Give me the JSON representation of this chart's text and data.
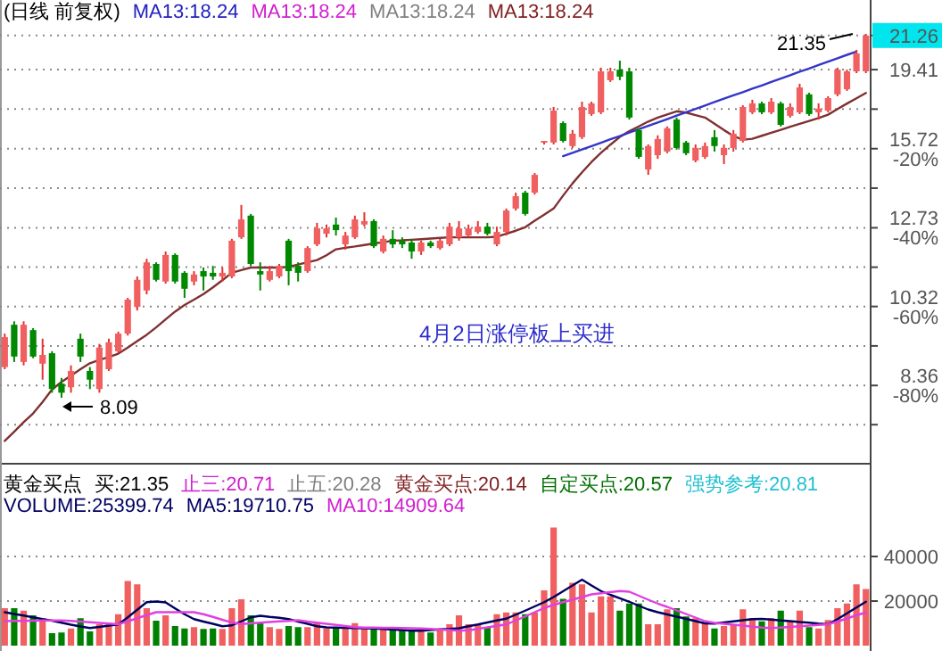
{
  "chart_data": [
    {
      "type": "candlestick",
      "log": true,
      "ylim": [
        6.85,
        23.37
      ],
      "tick_labels": "y",
      "grid": "y",
      "yticks": [
        21.26,
        19.41,
        {
          "value": 17.47,
          "label": null
        },
        {
          "value": 15.72,
          "label": "15.72\n-20%"
        },
        {
          "value": 14.15,
          "label": null
        },
        {
          "value": 12.73,
          "label": "12.73\n-40%"
        },
        {
          "value": 11.46,
          "label": null
        },
        {
          "value": 10.32,
          "label": "10.32\n-60%"
        },
        {
          "value": 9.29,
          "label": null
        },
        {
          "value": 8.36,
          "label": "8.36\n-80%"
        },
        {
          "value": 7.53,
          "label": null
        }
      ],
      "categories": [
        null,
        null,
        null,
        null,
        null,
        null,
        null,
        null,
        null,
        null,
        null,
        null,
        null,
        null,
        null,
        null,
        null,
        null,
        null,
        null,
        null,
        null,
        null,
        null,
        null,
        null,
        null,
        null,
        null,
        null,
        null,
        null,
        null,
        null,
        null,
        null,
        null,
        null,
        null,
        null,
        null,
        null,
        null,
        null,
        null,
        null,
        null,
        null,
        null,
        null,
        null,
        null,
        null,
        null,
        null,
        null,
        null,
        null,
        null,
        null,
        null,
        null,
        null,
        null,
        null,
        null,
        null,
        null,
        null,
        null,
        null,
        null,
        null,
        null,
        null,
        null,
        null,
        null,
        null,
        null,
        null,
        null,
        null,
        null,
        null,
        null,
        null,
        null,
        null,
        null,
        null,
        null
      ],
      "ohlc": [
        [
          8.78,
          9.6,
          8.73,
          9.51
        ],
        [
          9.83,
          9.92,
          8.9,
          9.03
        ],
        [
          8.9,
          9.92,
          8.82,
          9.83
        ],
        [
          9.69,
          9.74,
          8.99,
          9.03
        ],
        [
          8.86,
          9.47,
          8.49,
          9.07
        ],
        [
          9.11,
          9.16,
          8.2,
          8.28
        ],
        [
          8.4,
          8.53,
          8.09,
          8.2
        ],
        [
          8.32,
          8.82,
          8.2,
          8.69
        ],
        [
          9.47,
          9.6,
          8.9,
          9.03
        ],
        [
          8.69,
          8.78,
          8.28,
          8.49
        ],
        [
          8.28,
          9.34,
          8.2,
          9.25
        ],
        [
          8.73,
          9.47,
          8.69,
          9.38
        ],
        [
          9.16,
          9.65,
          9.11,
          9.6
        ],
        [
          9.6,
          10.56,
          9.55,
          10.51
        ],
        [
          10.31,
          11.18,
          10.21,
          11.08
        ],
        [
          10.77,
          11.72,
          10.66,
          11.61
        ],
        [
          11.56,
          11.61,
          11.03,
          11.08
        ],
        [
          11.03,
          11.95,
          10.97,
          11.84
        ],
        [
          11.84,
          11.89,
          10.97,
          11.03
        ],
        [
          11.29,
          11.34,
          10.56,
          10.82
        ],
        [
          11.03,
          11.34,
          10.92,
          11.24
        ],
        [
          11.34,
          11.45,
          10.77,
          11.18
        ],
        [
          11.29,
          11.5,
          11.08,
          11.18
        ],
        [
          11.18,
          11.45,
          11.03,
          11.29
        ],
        [
          11.18,
          12.36,
          11.13,
          12.3
        ],
        [
          12.41,
          13.53,
          12.36,
          13.02
        ],
        [
          13.15,
          13.21,
          11.5,
          11.56
        ],
        [
          11.34,
          11.61,
          10.77,
          11.24
        ],
        [
          11.08,
          11.5,
          11.03,
          11.34
        ],
        [
          11.18,
          11.56,
          11.13,
          11.5
        ],
        [
          12.3,
          12.36,
          10.92,
          11.34
        ],
        [
          11.5,
          11.61,
          11.03,
          11.29
        ],
        [
          11.34,
          12.12,
          11.29,
          12.06
        ],
        [
          12.18,
          12.9,
          12.12,
          12.71
        ],
        [
          12.53,
          12.84,
          12.41,
          12.71
        ],
        [
          12.84,
          13.08,
          12.47,
          12.65
        ],
        [
          12.18,
          12.59,
          12.01,
          12.47
        ],
        [
          12.41,
          13.15,
          12.36,
          13.02
        ],
        [
          12.84,
          13.27,
          12.77,
          12.96
        ],
        [
          12.96,
          13.02,
          12.06,
          12.12
        ],
        [
          11.95,
          12.47,
          11.89,
          12.36
        ],
        [
          12.36,
          12.65,
          12.06,
          12.18
        ],
        [
          12.3,
          12.41,
          12.06,
          12.18
        ],
        [
          12.24,
          12.36,
          11.72,
          11.95
        ],
        [
          11.95,
          12.3,
          11.84,
          12.24
        ],
        [
          12.24,
          12.3,
          12.06,
          12.12
        ],
        [
          12.06,
          12.36,
          12.01,
          12.3
        ],
        [
          12.18,
          12.9,
          12.12,
          12.77
        ],
        [
          12.41,
          12.96,
          12.3,
          12.71
        ],
        [
          12.47,
          12.84,
          12.41,
          12.71
        ],
        [
          12.59,
          12.96,
          12.53,
          12.77
        ],
        [
          12.77,
          12.9,
          12.47,
          12.53
        ],
        [
          12.18,
          12.77,
          12.12,
          12.59
        ],
        [
          12.59,
          13.4,
          12.47,
          13.33
        ],
        [
          13.4,
          13.98,
          13.33,
          13.85
        ],
        [
          13.98,
          14.05,
          13.15,
          13.21
        ],
        [
          13.98,
          14.73,
          13.91,
          14.66
        ],
        [
          16.05,
          16.05,
          15.9,
          16.05
        ],
        [
          15.98,
          17.57,
          15.9,
          17.4
        ],
        [
          16.83,
          16.91,
          15.98,
          16.05
        ],
        [
          15.83,
          16.52,
          15.75,
          16.36
        ],
        [
          16.21,
          17.82,
          16.13,
          17.57
        ],
        [
          17.24,
          17.82,
          17.16,
          17.74
        ],
        [
          17.32,
          19.51,
          17.24,
          19.32
        ],
        [
          18.87,
          19.51,
          18.78,
          19.32
        ],
        [
          19.41,
          19.88,
          18.87,
          19.05
        ],
        [
          19.32,
          19.51,
          16.99,
          17.08
        ],
        [
          16.52,
          16.6,
          15.3,
          15.38
        ],
        [
          14.87,
          15.9,
          14.66,
          15.83
        ],
        [
          15.45,
          16.29,
          15.3,
          16.13
        ],
        [
          15.6,
          16.68,
          15.53,
          16.6
        ],
        [
          16.99,
          17.08,
          15.68,
          15.75
        ],
        [
          15.98,
          16.05,
          15.45,
          15.53
        ],
        [
          15.23,
          15.9,
          15.16,
          15.75
        ],
        [
          15.38,
          15.98,
          15.3,
          15.83
        ],
        [
          16.21,
          16.52,
          15.6,
          15.83
        ],
        [
          15.45,
          15.9,
          15.09,
          15.75
        ],
        [
          15.75,
          16.52,
          15.6,
          16.36
        ],
        [
          16.05,
          17.65,
          15.98,
          17.57
        ],
        [
          17.32,
          17.91,
          17.24,
          17.74
        ],
        [
          17.74,
          17.82,
          17.24,
          17.32
        ],
        [
          17.32,
          17.99,
          17.24,
          17.82
        ],
        [
          17.74,
          17.82,
          16.68,
          16.75
        ],
        [
          17.16,
          17.74,
          17.08,
          17.57
        ],
        [
          17.32,
          18.69,
          17.24,
          18.51
        ],
        [
          18.17,
          18.25,
          17.16,
          17.24
        ],
        [
          17.32,
          17.74,
          16.99,
          17.49
        ],
        [
          17.4,
          18.08,
          17.32,
          17.99
        ],
        [
          18.17,
          19.51,
          18.08,
          19.41
        ],
        [
          18.42,
          19.41,
          18.34,
          19.32
        ],
        [
          19.32,
          20.46,
          19.23,
          20.27
        ],
        [
          19.32,
          21.35,
          19.23,
          21.26
        ]
      ],
      "series": [
        {
          "type": "line",
          "color": "#803030",
          "values": [
            7.21,
            7.39,
            7.58,
            7.76,
            8.0,
            8.27,
            8.44,
            8.58,
            8.73,
            8.87,
            8.95,
            9.02,
            9.1,
            9.25,
            9.41,
            9.57,
            9.76,
            9.97,
            10.18,
            10.36,
            10.51,
            10.67,
            10.86,
            11.07,
            11.29,
            11.37,
            11.45,
            11.45,
            11.45,
            11.45,
            11.47,
            11.54,
            11.61,
            11.68,
            11.83,
            12.02,
            12.07,
            12.11,
            12.16,
            12.21,
            12.25,
            12.3,
            12.31,
            12.33,
            12.35,
            12.37,
            12.39,
            12.41,
            12.41,
            12.41,
            12.41,
            12.41,
            12.43,
            12.53,
            12.63,
            12.75,
            12.97,
            13.18,
            13.4,
            13.87,
            14.33,
            14.76,
            15.17,
            15.55,
            15.89,
            16.22,
            16.47,
            16.68,
            16.9,
            17.08,
            17.22,
            17.37,
            17.31,
            17.19,
            17.08,
            16.8,
            16.52,
            16.26,
            16.1,
            16.14,
            16.27,
            16.4,
            16.53,
            16.67,
            16.8,
            16.93,
            17.06,
            17.21,
            17.47,
            17.73,
            17.98,
            18.24
          ]
        },
        {
          "type": "line",
          "color": "#3535c8",
          "values": [
            null,
            null,
            null,
            null,
            null,
            null,
            null,
            null,
            null,
            null,
            null,
            null,
            null,
            null,
            null,
            null,
            null,
            null,
            null,
            null,
            null,
            null,
            null,
            null,
            null,
            null,
            null,
            null,
            null,
            null,
            null,
            null,
            null,
            null,
            null,
            null,
            null,
            null,
            null,
            null,
            null,
            null,
            null,
            null,
            null,
            null,
            null,
            null,
            null,
            null,
            null,
            null,
            null,
            null,
            null,
            null,
            null,
            null,
            null,
            15.41,
            15.55,
            15.69,
            15.83,
            15.97,
            16.12,
            16.26,
            16.41,
            16.56,
            16.71,
            16.86,
            17.01,
            17.17,
            17.32,
            17.48,
            17.64,
            17.8,
            17.96,
            18.12,
            18.28,
            18.45,
            18.61,
            18.78,
            18.95,
            19.12,
            19.3,
            19.47,
            19.65,
            19.83,
            20.01,
            20.19,
            20.37,
            null
          ]
        }
      ],
      "annotations": [
        "(日线 前复权)",
        "MA13:18.24",
        "MA13:18.24",
        "MA13:18.24",
        "MA13:18.24",
        "8.09",
        "21.35",
        "4月2日涨停板上买进"
      ]
    },
    {
      "type": "bar",
      "ylim": [
        0,
        80000
      ],
      "yticks": [
        20000,
        40000
      ],
      "tick_labels": "y",
      "grid": "y",
      "categories": [
        null,
        null,
        null,
        null,
        null,
        null,
        null,
        null,
        null,
        null,
        null,
        null,
        null,
        null,
        null,
        null,
        null,
        null,
        null,
        null,
        null,
        null,
        null,
        null,
        null,
        null,
        null,
        null,
        null,
        null,
        null,
        null,
        null,
        null,
        null,
        null,
        null,
        null,
        null,
        null,
        null,
        null,
        null,
        null,
        null,
        null,
        null,
        null,
        null,
        null,
        null,
        null,
        null,
        null,
        null,
        null,
        null,
        null,
        null,
        null,
        null,
        null,
        null,
        null,
        null,
        null,
        null,
        null,
        null,
        null,
        null,
        null,
        null,
        null,
        null,
        null,
        null,
        null,
        null,
        null,
        null,
        null,
        null,
        null,
        null,
        null,
        null,
        null,
        null,
        null,
        null,
        null
      ],
      "series": [
        {
          "type": "bar",
          "values": [
            16800,
            16800,
            15700,
            13600,
            12300,
            5600,
            5900,
            7700,
            12300,
            6400,
            9600,
            10100,
            14100,
            29000,
            27500,
            16800,
            11200,
            13600,
            8800,
            7700,
            8300,
            7500,
            7700,
            7500,
            16800,
            20800,
            13600,
            10400,
            8300,
            7500,
            8800,
            8300,
            8300,
            10100,
            7700,
            8300,
            8300,
            10100,
            8300,
            8300,
            7500,
            7700,
            6900,
            6900,
            6400,
            5900,
            6900,
            9600,
            13600,
            9600,
            9600,
            8300,
            14100,
            14900,
            14900,
            14100,
            14900,
            24800,
            53000,
            21000,
            28200,
            27500,
            14900,
            22100,
            22100,
            15700,
            18900,
            18900,
            9600,
            9600,
            16300,
            16800,
            13100,
            12300,
            10100,
            7700,
            8800,
            9600,
            16300,
            12300,
            10900,
            12300,
            15700,
            10900,
            15700,
            8300,
            7700,
            11500,
            16800,
            18900,
            27500,
            25400
          ],
          "colors": [
            "#f06060",
            "#008000",
            "#f06060",
            "#008000",
            "#f06060",
            "#008000",
            "#008000",
            "#f06060",
            "#008000",
            "#008000",
            "#f06060",
            "#f06060",
            "#f06060",
            "#f06060",
            "#f06060",
            "#f06060",
            "#008000",
            "#f06060",
            "#008000",
            "#008000",
            "#f06060",
            "#008000",
            "#008000",
            "#f06060",
            "#f06060",
            "#f06060",
            "#008000",
            "#008000",
            "#f06060",
            "#f06060",
            "#008000",
            "#008000",
            "#f06060",
            "#f06060",
            "#f06060",
            "#008000",
            "#f06060",
            "#f06060",
            "#f06060",
            "#008000",
            "#f06060",
            "#008000",
            "#008000",
            "#008000",
            "#f06060",
            "#008000",
            "#f06060",
            "#f06060",
            "#f06060",
            "#f06060",
            "#f06060",
            "#008000",
            "#f06060",
            "#f06060",
            "#f06060",
            "#008000",
            "#f06060",
            "#f06060",
            "#f06060",
            "#008000",
            "#f06060",
            "#f06060",
            "#f06060",
            "#f06060",
            "#f06060",
            "#008000",
            "#008000",
            "#008000",
            "#f06060",
            "#f06060",
            "#f06060",
            "#008000",
            "#008000",
            "#f06060",
            "#f06060",
            "#008000",
            "#f06060",
            "#f06060",
            "#f06060",
            "#f06060",
            "#008000",
            "#f06060",
            "#008000",
            "#f06060",
            "#f06060",
            "#008000",
            "#f06060",
            "#f06060",
            "#f06060",
            "#f06060",
            "#f06060",
            "#f06060"
          ]
        },
        {
          "type": "line",
          "color": "#000060",
          "values": [
            15000,
            14200,
            13500,
            12700,
            11900,
            11200,
            10300,
            9400,
            8600,
            7900,
            8400,
            9000,
            9500,
            12700,
            16100,
            19500,
            19800,
            19400,
            16700,
            14100,
            11900,
            10800,
            9800,
            8700,
            9100,
            10900,
            12700,
            13400,
            12900,
            12500,
            11900,
            10800,
            9800,
            8700,
            8200,
            8100,
            8000,
            7900,
            7800,
            7700,
            7500,
            7200,
            7000,
            6700,
            6700,
            7000,
            7300,
            7500,
            7800,
            8700,
            9500,
            10400,
            11300,
            12100,
            13900,
            15700,
            17600,
            19500,
            21800,
            24400,
            27000,
            29600,
            27000,
            24500,
            22800,
            21300,
            19700,
            17900,
            16200,
            15000,
            14000,
            13000,
            12000,
            11000,
            10000,
            9900,
            10400,
            10900,
            11400,
            11900,
            12000,
            11700,
            11300,
            11000,
            10600,
            10300,
            9900,
            9600,
            11900,
            14500,
            17100,
            19700
          ]
        },
        {
          "type": "line",
          "color": "#e040e0",
          "values": [
            11000,
            11100,
            11100,
            11200,
            11300,
            11300,
            11300,
            11100,
            10800,
            10500,
            10200,
            9900,
            9600,
            10900,
            12300,
            13700,
            15000,
            15000,
            15000,
            15000,
            15000,
            14100,
            12900,
            11600,
            10400,
            9700,
            10000,
            10300,
            10600,
            10900,
            11100,
            11400,
            10800,
            10300,
            9800,
            9300,
            8800,
            8300,
            8100,
            8100,
            8000,
            8000,
            7900,
            7800,
            7700,
            7500,
            7200,
            7000,
            6700,
            6900,
            7500,
            8200,
            8900,
            9500,
            11300,
            13100,
            15000,
            16900,
            18300,
            19500,
            20600,
            21800,
            23000,
            23500,
            24000,
            24500,
            24200,
            22400,
            20600,
            18900,
            17400,
            15800,
            14200,
            12600,
            11000,
            10200,
            9800,
            9400,
            9000,
            8500,
            8100,
            7900,
            8100,
            8400,
            8700,
            9000,
            9300,
            9600,
            10800,
            12200,
            13600,
            14900
          ]
        }
      ],
      "annotations": [
        "黄金买点",
        "买:21.35",
        "止三:20.71",
        "止五:20.28",
        "黄金买点:20.14",
        "自定买点:20.57",
        "强势参考:20.81",
        "VOLUME:25399.74",
        "MA5:19710.75",
        "MA10:14909.64"
      ]
    }
  ]
}
